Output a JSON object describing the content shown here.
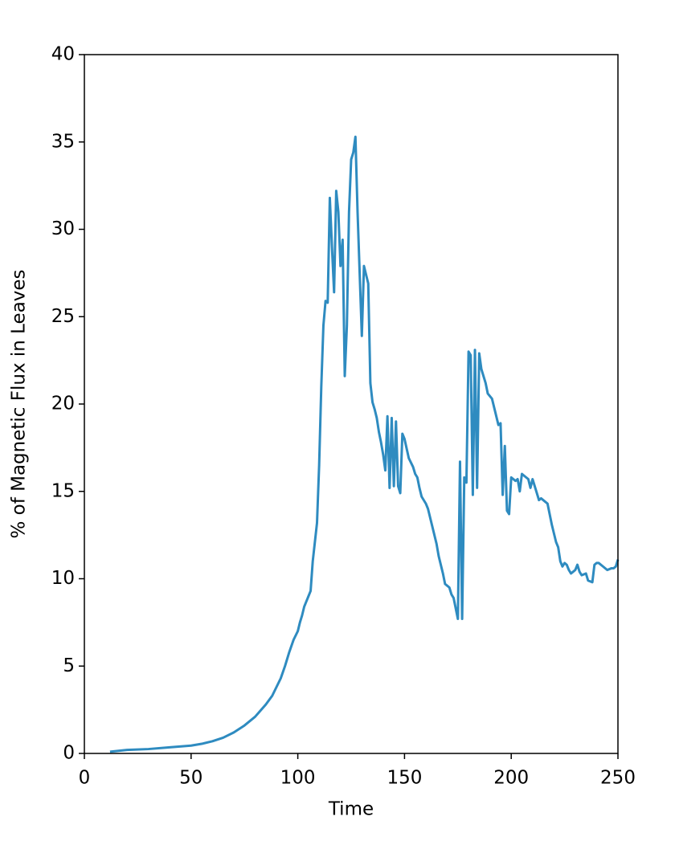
{
  "chart_data": {
    "type": "line",
    "xlabel": "Time",
    "ylabel": "% of Magnetic Flux in Leaves",
    "xlim": [
      0,
      250
    ],
    "ylim": [
      0,
      40
    ],
    "xticks": [
      0,
      50,
      100,
      150,
      200,
      250
    ],
    "yticks": [
      0,
      5,
      10,
      15,
      20,
      25,
      30,
      35,
      40
    ],
    "grid": false,
    "x": [
      12,
      20,
      30,
      40,
      50,
      55,
      60,
      65,
      70,
      75,
      80,
      85,
      88,
      90,
      92,
      94,
      96,
      98,
      100,
      101,
      102,
      103,
      105,
      106,
      107,
      109,
      110,
      111,
      112,
      113,
      114,
      115,
      116,
      117,
      118,
      119,
      120,
      121,
      122,
      123,
      124,
      125,
      126,
      127,
      128,
      130,
      131,
      133,
      134,
      135,
      136,
      137,
      138,
      139,
      140,
      141,
      142,
      143,
      144,
      145,
      146,
      147,
      148,
      149,
      150,
      152,
      154,
      155,
      156,
      157,
      158,
      160,
      161,
      163,
      165,
      166,
      167,
      168,
      169,
      170,
      171,
      172,
      173,
      174,
      175,
      176,
      177,
      178,
      179,
      180,
      181,
      182,
      183,
      184,
      185,
      186,
      188,
      189,
      191,
      192,
      194,
      195,
      196,
      197,
      198,
      199,
      200,
      202,
      203,
      204,
      205,
      207,
      208,
      209,
      210,
      211,
      213,
      214,
      216,
      217,
      219,
      220,
      221,
      222,
      223,
      224,
      225,
      226,
      227,
      228,
      229,
      230,
      231,
      232,
      233,
      235,
      236,
      238,
      239,
      240,
      241,
      243,
      245,
      247,
      248,
      249,
      250
    ],
    "series": [
      {
        "color": "#2e8bc0",
        "values": [
          0.1,
          0.2,
          0.25,
          0.35,
          0.45,
          0.55,
          0.7,
          0.9,
          1.2,
          1.6,
          2.1,
          2.8,
          3.3,
          3.8,
          4.3,
          5.0,
          5.8,
          6.5,
          7.0,
          7.5,
          7.9,
          8.4,
          9.0,
          9.3,
          11.0,
          13.2,
          16.5,
          21.0,
          24.5,
          25.9,
          25.8,
          31.8,
          29.0,
          26.4,
          32.2,
          31.0,
          27.9,
          29.4,
          21.6,
          24.5,
          31.0,
          34.0,
          34.4,
          35.3,
          31.0,
          23.9,
          27.9,
          26.9,
          21.2,
          20.1,
          19.7,
          19.2,
          18.4,
          17.8,
          17.1,
          16.2,
          19.3,
          15.2,
          19.2,
          15.3,
          19.0,
          15.3,
          14.9,
          18.3,
          18.0,
          16.9,
          16.4,
          16.0,
          15.8,
          15.2,
          14.7,
          14.3,
          14.0,
          13.0,
          12.0,
          11.3,
          10.8,
          10.3,
          9.7,
          9.6,
          9.5,
          9.1,
          8.9,
          8.3,
          7.7,
          16.7,
          7.7,
          15.8,
          15.5,
          23.0,
          22.8,
          14.8,
          23.1,
          15.2,
          22.9,
          22.0,
          21.2,
          20.6,
          20.3,
          19.8,
          18.8,
          18.9,
          14.8,
          17.6,
          13.9,
          13.7,
          15.8,
          15.6,
          15.7,
          15.0,
          16.0,
          15.8,
          15.7,
          15.2,
          15.7,
          15.3,
          14.5,
          14.6,
          14.4,
          14.3,
          13.1,
          12.6,
          12.1,
          11.8,
          11.0,
          10.7,
          10.9,
          10.8,
          10.5,
          10.3,
          10.4,
          10.5,
          10.8,
          10.4,
          10.2,
          10.3,
          9.9,
          9.8,
          10.8,
          10.9,
          10.9,
          10.7,
          10.5,
          10.6,
          10.6,
          10.7,
          11.1
        ]
      }
    ]
  }
}
